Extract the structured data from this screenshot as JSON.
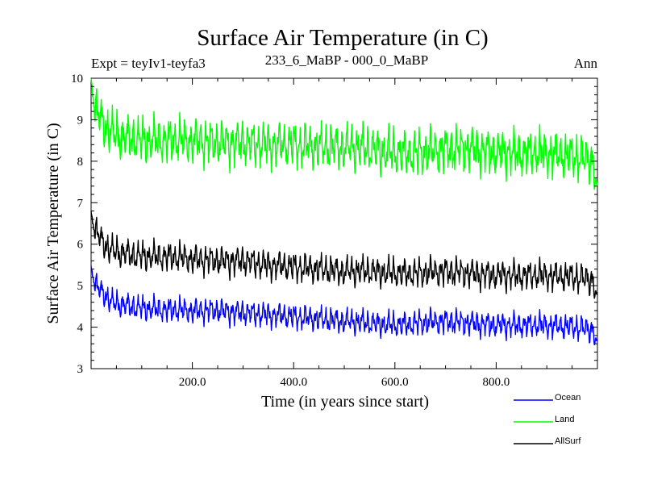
{
  "chart_data": {
    "type": "line",
    "title": "Surface Air Temperature (in C)",
    "subtitle_left": "Expt = teyIv1-teyfa3",
    "subtitle_center": "233_6_MaBP - 000_0_MaBP",
    "subtitle_right": "Ann",
    "xlabel": "Time (in years since start)",
    "ylabel": "Surface Air Temperature (in C)",
    "xlim": [
      0,
      1000
    ],
    "ylim": [
      3,
      10
    ],
    "xticks": [
      200,
      400,
      600,
      800
    ],
    "xtick_labels": [
      "200.0",
      "400.0",
      "600.0",
      "800.0"
    ],
    "yticks": [
      3,
      4,
      5,
      6,
      7,
      8,
      9,
      10
    ],
    "ytick_labels": [
      "3",
      "4",
      "5",
      "6",
      "7",
      "8",
      "9",
      "10"
    ],
    "series": [
      {
        "name": "Ocean",
        "color": "#0000ff",
        "x": [
          0,
          10,
          20,
          30,
          40,
          60,
          80,
          100,
          150,
          200,
          250,
          300,
          350,
          400,
          450,
          500,
          550,
          600,
          650,
          700,
          750,
          800,
          850,
          900,
          950,
          990,
          1000
        ],
        "y": [
          5.4,
          5.0,
          4.85,
          4.75,
          4.6,
          4.55,
          4.5,
          4.45,
          4.42,
          4.4,
          4.4,
          4.35,
          4.3,
          4.25,
          4.2,
          4.15,
          4.1,
          4.05,
          4.1,
          4.15,
          4.1,
          4.05,
          4.05,
          4.05,
          4.0,
          3.95,
          3.6
        ]
      },
      {
        "name": "Land",
        "color": "#00ff00",
        "x": [
          0,
          10,
          20,
          30,
          40,
          60,
          80,
          100,
          150,
          200,
          250,
          300,
          350,
          400,
          450,
          500,
          550,
          600,
          650,
          700,
          750,
          800,
          850,
          900,
          950,
          990,
          1000
        ],
        "y": [
          9.9,
          9.2,
          9.0,
          8.8,
          8.7,
          8.6,
          8.55,
          8.5,
          8.5,
          8.5,
          8.45,
          8.45,
          8.4,
          8.4,
          8.35,
          8.35,
          8.3,
          8.2,
          8.2,
          8.3,
          8.3,
          8.2,
          8.2,
          8.2,
          8.1,
          8.05,
          7.3
        ]
      },
      {
        "name": "AllSurf",
        "color": "#000000",
        "x": [
          0,
          10,
          20,
          30,
          40,
          60,
          80,
          100,
          150,
          200,
          250,
          300,
          350,
          400,
          450,
          500,
          550,
          600,
          650,
          700,
          750,
          800,
          850,
          900,
          950,
          990,
          1000
        ],
        "y": [
          6.7,
          6.3,
          6.1,
          5.95,
          5.85,
          5.8,
          5.75,
          5.7,
          5.7,
          5.65,
          5.6,
          5.6,
          5.5,
          5.45,
          5.4,
          5.35,
          5.35,
          5.3,
          5.3,
          5.35,
          5.3,
          5.25,
          5.25,
          5.25,
          5.2,
          5.15,
          4.7
        ]
      }
    ],
    "legend": {
      "placement": "bottom-right",
      "entries": [
        "Ocean",
        "Land",
        "AllSurf"
      ]
    }
  }
}
